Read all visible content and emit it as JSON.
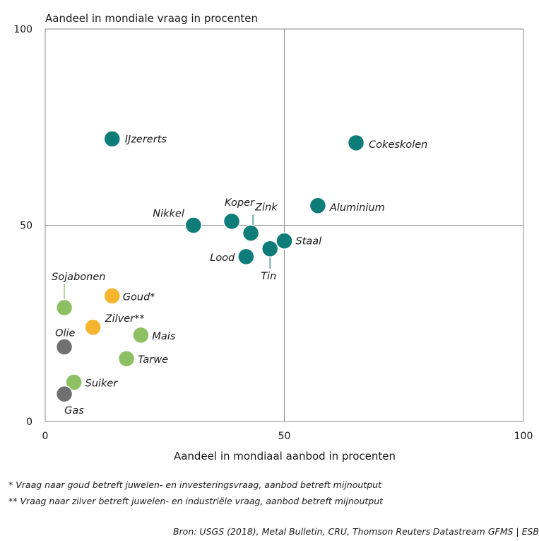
{
  "chart_data": {
    "type": "scatter",
    "ylabel": "Aandeel in mondiale vraag in procenten",
    "xlabel": "Aandeel in mondiaal aanbod in procenten",
    "xlim": [
      0,
      100
    ],
    "ylim": [
      0,
      100
    ],
    "xticks": [
      "0",
      "50",
      "100"
    ],
    "yticks": [
      "0",
      "50",
      "100"
    ],
    "grid": "x=50, y=50 reference lines",
    "colors": {
      "metals": "#0e7c78",
      "agriculture": "#8cc063",
      "precious": "#f5b52e",
      "energy": "#707070"
    },
    "points": [
      {
        "name": "IJzererts",
        "x": 14,
        "y": 72,
        "group": "metals"
      },
      {
        "name": "Cokeskolen",
        "x": 65,
        "y": 71,
        "group": "metals"
      },
      {
        "name": "Aluminium",
        "x": 57,
        "y": 55,
        "group": "metals"
      },
      {
        "name": "Nikkel",
        "x": 31,
        "y": 50,
        "group": "metals"
      },
      {
        "name": "Koper",
        "x": 39,
        "y": 51,
        "group": "metals"
      },
      {
        "name": "Zink",
        "x": 43,
        "y": 48,
        "group": "metals"
      },
      {
        "name": "Staal",
        "x": 50,
        "y": 46,
        "group": "metals"
      },
      {
        "name": "Lood",
        "x": 42,
        "y": 42,
        "group": "metals"
      },
      {
        "name": "Tin",
        "x": 47,
        "y": 44,
        "group": "metals"
      },
      {
        "name": "Sojabonen",
        "x": 4,
        "y": 29,
        "group": "agriculture"
      },
      {
        "name": "Goud*",
        "x": 14,
        "y": 32,
        "group": "precious"
      },
      {
        "name": "Zilver**",
        "x": 10,
        "y": 24,
        "group": "precious"
      },
      {
        "name": "Mais",
        "x": 20,
        "y": 22,
        "group": "agriculture"
      },
      {
        "name": "Olie",
        "x": 4,
        "y": 19,
        "group": "energy"
      },
      {
        "name": "Tarwe",
        "x": 17,
        "y": 16,
        "group": "agriculture"
      },
      {
        "name": "Suiker",
        "x": 6,
        "y": 10,
        "group": "agriculture"
      },
      {
        "name": "Gas",
        "x": 4,
        "y": 7,
        "group": "energy"
      }
    ]
  },
  "footnotes": {
    "gold": "* Vraag naar goud betreft juwelen- en investeringsvraag, aanbod betreft mijnoutput",
    "silver": "** Vraag naar zilver betreft juwelen- en industriële vraag, aanbod betreft mijnoutput"
  },
  "source": "Bron: USGS (2018), Metal Bulletin, CRU, Thomson Reuters Datastream GFMS | ESB"
}
